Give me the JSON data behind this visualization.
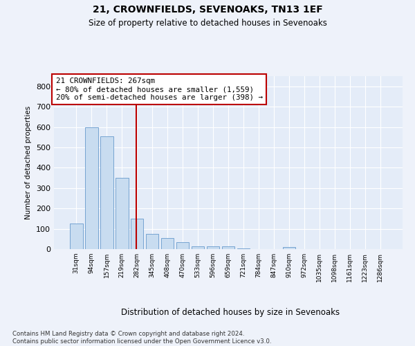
{
  "title1": "21, CROWNFIELDS, SEVENOAKS, TN13 1EF",
  "title2": "Size of property relative to detached houses in Sevenoaks",
  "xlabel": "Distribution of detached houses by size in Sevenoaks",
  "ylabel": "Number of detached properties",
  "categories": [
    "31sqm",
    "94sqm",
    "157sqm",
    "219sqm",
    "282sqm",
    "345sqm",
    "408sqm",
    "470sqm",
    "533sqm",
    "596sqm",
    "659sqm",
    "721sqm",
    "784sqm",
    "847sqm",
    "910sqm",
    "972sqm",
    "1035sqm",
    "1098sqm",
    "1161sqm",
    "1223sqm",
    "1286sqm"
  ],
  "values": [
    125,
    600,
    555,
    350,
    150,
    75,
    55,
    33,
    15,
    12,
    12,
    5,
    0,
    0,
    10,
    0,
    0,
    0,
    0,
    0,
    0
  ],
  "bar_color": "#c8dcf0",
  "bar_edge_color": "#6699cc",
  "ref_line_color": "#bb0000",
  "ref_line_index": 4,
  "annotation_line1": "21 CROWNFIELDS: 267sqm",
  "annotation_line2": "← 80% of detached houses are smaller (1,559)",
  "annotation_line3": "20% of semi-detached houses are larger (398) →",
  "ylim": [
    0,
    850
  ],
  "yticks": [
    0,
    100,
    200,
    300,
    400,
    500,
    600,
    700,
    800
  ],
  "footer_line1": "Contains HM Land Registry data © Crown copyright and database right 2024.",
  "footer_line2": "Contains public sector information licensed under the Open Government Licence v3.0.",
  "fig_bg_color": "#eef2fa",
  "plot_bg_color": "#e4ecf8"
}
